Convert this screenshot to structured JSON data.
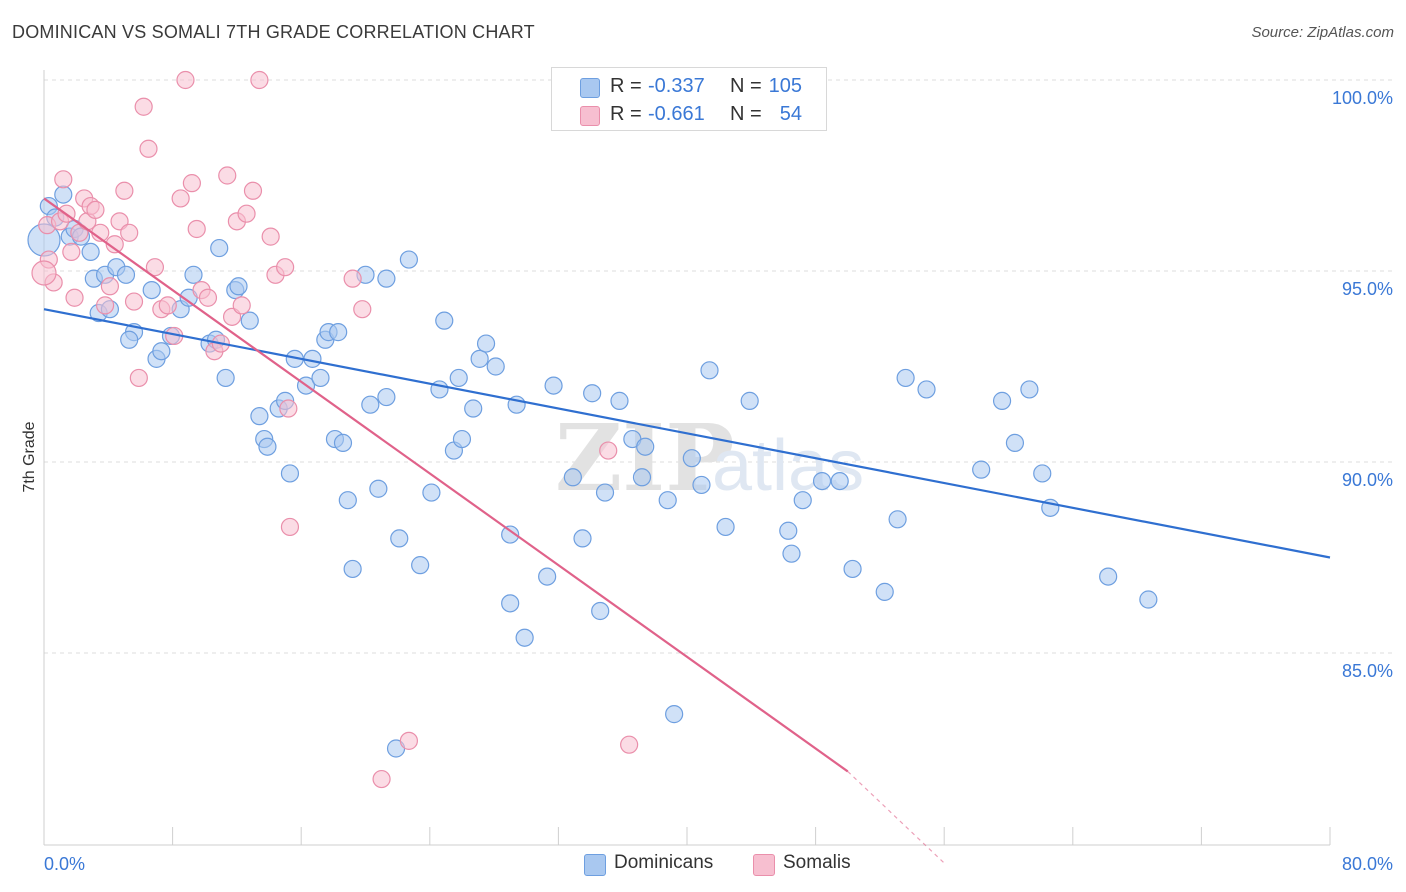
{
  "title": "DOMINICAN VS SOMALI 7TH GRADE CORRELATION CHART",
  "source": "Source: ZipAtlas.com",
  "watermark": "ZIPatlas",
  "legend": {
    "rows": [
      {
        "r_label": "R =",
        "r_value": "-0.337",
        "n_label": "N =",
        "n_value": "105",
        "color": "#a9c8f0",
        "border": "#6e9fe0"
      },
      {
        "r_label": "R =",
        "r_value": "-0.661",
        "n_label": "N =",
        "n_value": "54",
        "color": "#f7bfd0",
        "border": "#ea8fab"
      }
    ],
    "bottom": [
      {
        "label": "Dominicans",
        "color": "#a9c8f0",
        "border": "#6e9fe0"
      },
      {
        "label": "Somalis",
        "color": "#f7bfd0",
        "border": "#ea8fab"
      }
    ]
  },
  "chart_data": {
    "type": "scatter",
    "title": "DOMINICAN VS SOMALI 7TH GRADE CORRELATION CHART",
    "xlabel": "",
    "ylabel": "7th Grade",
    "xlim": [
      0,
      80
    ],
    "ylim": [
      80,
      100.5
    ],
    "x_tick_labels": [
      "0.0%",
      "80.0%"
    ],
    "y_ticks": [
      85,
      90,
      95,
      100
    ],
    "y_tick_labels": [
      "85.0%",
      "90.0%",
      "95.0%",
      "100.0%"
    ],
    "grid": true,
    "legend_position": "top-center",
    "series": [
      {
        "name": "Dominicans",
        "color": "#6e9fe0",
        "fill": "#a9c8f0",
        "trend": {
          "x": [
            0,
            80
          ],
          "y": [
            94.0,
            87.5
          ],
          "color": "#2f6fd0"
        },
        "points": [
          [
            0.3,
            96.7
          ],
          [
            0.7,
            96.4
          ],
          [
            1.2,
            97.0
          ],
          [
            1.6,
            95.9
          ],
          [
            1.9,
            96.1
          ],
          [
            2.3,
            95.9
          ],
          [
            2.9,
            95.5
          ],
          [
            3.1,
            94.8
          ],
          [
            3.8,
            94.9
          ],
          [
            3.4,
            93.9
          ],
          [
            4.1,
            94.0
          ],
          [
            4.5,
            95.1
          ],
          [
            5.1,
            94.9
          ],
          [
            5.6,
            93.4
          ],
          [
            5.3,
            93.2
          ],
          [
            6.7,
            94.5
          ],
          [
            7.0,
            92.7
          ],
          [
            7.3,
            92.9
          ],
          [
            7.9,
            93.3
          ],
          [
            8.5,
            94.0
          ],
          [
            9.0,
            94.3
          ],
          [
            9.3,
            94.9
          ],
          [
            10.3,
            93.1
          ],
          [
            10.7,
            93.2
          ],
          [
            10.9,
            95.6
          ],
          [
            11.3,
            92.2
          ],
          [
            11.9,
            94.5
          ],
          [
            12.1,
            94.6
          ],
          [
            12.8,
            93.7
          ],
          [
            13.4,
            91.2
          ],
          [
            13.7,
            90.6
          ],
          [
            13.9,
            90.4
          ],
          [
            14.6,
            91.4
          ],
          [
            15.0,
            91.6
          ],
          [
            15.3,
            89.7
          ],
          [
            15.6,
            92.7
          ],
          [
            16.3,
            92.0
          ],
          [
            16.7,
            92.7
          ],
          [
            17.2,
            92.2
          ],
          [
            17.5,
            93.2
          ],
          [
            17.7,
            93.4
          ],
          [
            18.1,
            90.6
          ],
          [
            18.6,
            90.5
          ],
          [
            18.9,
            89.0
          ],
          [
            20.0,
            94.9
          ],
          [
            20.3,
            91.5
          ],
          [
            20.8,
            89.3
          ],
          [
            21.3,
            91.7
          ],
          [
            22.1,
            88.0
          ],
          [
            22.7,
            95.3
          ],
          [
            23.4,
            87.3
          ],
          [
            24.1,
            89.2
          ],
          [
            24.6,
            91.9
          ],
          [
            24.9,
            93.7
          ],
          [
            25.5,
            90.3
          ],
          [
            26.0,
            90.6
          ],
          [
            26.7,
            91.4
          ],
          [
            27.1,
            92.7
          ],
          [
            27.5,
            93.1
          ],
          [
            28.1,
            92.5
          ],
          [
            29.0,
            88.1
          ],
          [
            29.4,
            91.5
          ],
          [
            29.9,
            85.4
          ],
          [
            29.0,
            86.3
          ],
          [
            31.3,
            87.0
          ],
          [
            31.7,
            92.0
          ],
          [
            32.9,
            89.6
          ],
          [
            33.5,
            88.0
          ],
          [
            34.1,
            91.8
          ],
          [
            34.6,
            86.1
          ],
          [
            34.9,
            89.2
          ],
          [
            35.8,
            91.6
          ],
          [
            36.6,
            90.6
          ],
          [
            37.4,
            90.4
          ],
          [
            38.8,
            89.0
          ],
          [
            39.2,
            83.4
          ],
          [
            40.3,
            90.1
          ],
          [
            40.9,
            89.4
          ],
          [
            41.4,
            92.4
          ],
          [
            42.4,
            88.3
          ],
          [
            43.9,
            91.6
          ],
          [
            46.3,
            88.2
          ],
          [
            46.5,
            87.6
          ],
          [
            47.2,
            89.0
          ],
          [
            48.4,
            89.5
          ],
          [
            49.5,
            89.5
          ],
          [
            50.3,
            87.2
          ],
          [
            52.3,
            86.6
          ],
          [
            53.1,
            88.5
          ],
          [
            53.6,
            92.2
          ],
          [
            54.9,
            91.9
          ],
          [
            58.3,
            89.8
          ],
          [
            59.6,
            91.6
          ],
          [
            60.4,
            90.5
          ],
          [
            61.3,
            91.9
          ],
          [
            62.1,
            89.7
          ],
          [
            62.6,
            88.8
          ],
          [
            66.2,
            87.0
          ],
          [
            68.7,
            86.4
          ],
          [
            19.2,
            87.2
          ],
          [
            21.9,
            82.5
          ],
          [
            21.3,
            94.8
          ],
          [
            37.2,
            89.6
          ],
          [
            18.3,
            93.4
          ],
          [
            25.8,
            92.2
          ]
        ]
      },
      {
        "name": "Somalis",
        "color": "#ea8fab",
        "fill": "#f7bfd0",
        "trend": {
          "x": [
            0,
            50
          ],
          "y": [
            96.9,
            81.9
          ],
          "color": "#e0628a",
          "dash_to": [
            56,
            79.5
          ]
        },
        "points": [
          [
            0.2,
            96.2
          ],
          [
            0.3,
            95.3
          ],
          [
            0.6,
            94.7
          ],
          [
            1.0,
            96.3
          ],
          [
            1.2,
            97.4
          ],
          [
            1.4,
            96.5
          ],
          [
            1.7,
            95.5
          ],
          [
            1.9,
            94.3
          ],
          [
            2.2,
            96.0
          ],
          [
            2.5,
            96.9
          ],
          [
            2.7,
            96.3
          ],
          [
            2.9,
            96.7
          ],
          [
            3.2,
            96.6
          ],
          [
            3.5,
            96.0
          ],
          [
            3.8,
            94.1
          ],
          [
            4.1,
            94.6
          ],
          [
            4.4,
            95.7
          ],
          [
            4.7,
            96.3
          ],
          [
            5.0,
            97.1
          ],
          [
            5.3,
            96.0
          ],
          [
            5.6,
            94.2
          ],
          [
            5.9,
            92.2
          ],
          [
            6.2,
            99.3
          ],
          [
            6.5,
            98.2
          ],
          [
            6.9,
            95.1
          ],
          [
            7.3,
            94.0
          ],
          [
            7.7,
            94.1
          ],
          [
            8.1,
            93.3
          ],
          [
            8.5,
            96.9
          ],
          [
            8.8,
            100.0
          ],
          [
            9.2,
            97.3
          ],
          [
            9.5,
            96.1
          ],
          [
            9.8,
            94.5
          ],
          [
            10.2,
            94.3
          ],
          [
            10.6,
            92.9
          ],
          [
            11.0,
            93.1
          ],
          [
            11.4,
            97.5
          ],
          [
            11.7,
            93.8
          ],
          [
            12.0,
            96.3
          ],
          [
            12.3,
            94.1
          ],
          [
            12.6,
            96.5
          ],
          [
            13.0,
            97.1
          ],
          [
            13.4,
            100.0
          ],
          [
            14.1,
            95.9
          ],
          [
            14.4,
            94.9
          ],
          [
            15.0,
            95.1
          ],
          [
            15.2,
            91.4
          ],
          [
            15.3,
            88.3
          ],
          [
            19.2,
            94.8
          ],
          [
            21.0,
            81.7
          ],
          [
            19.8,
            94.0
          ],
          [
            22.7,
            82.7
          ],
          [
            35.1,
            90.3
          ],
          [
            36.4,
            82.6
          ]
        ]
      }
    ]
  }
}
